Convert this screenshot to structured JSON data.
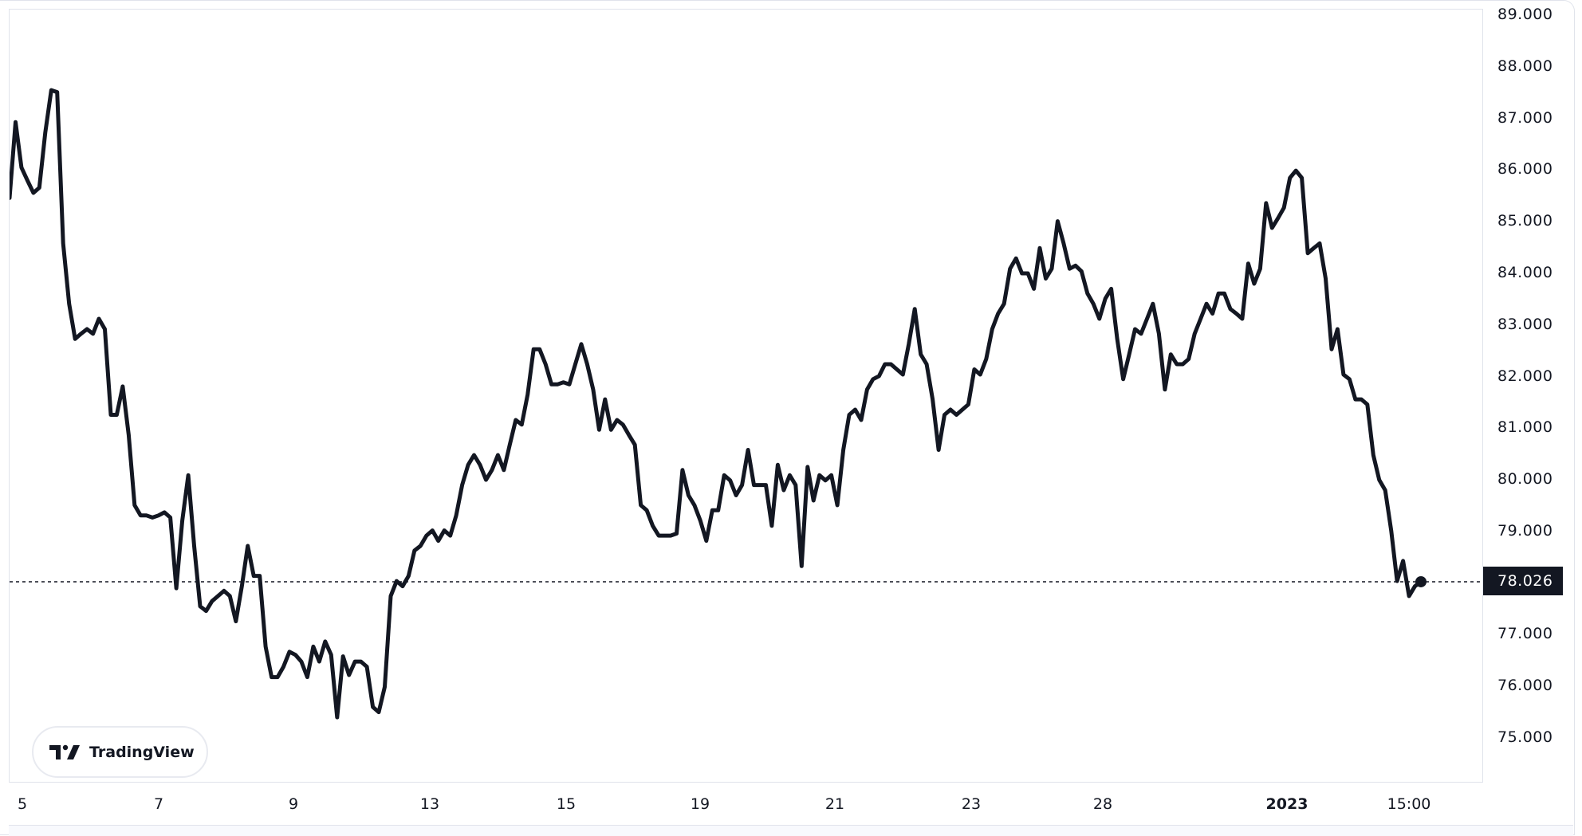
{
  "chart_data": {
    "type": "line",
    "title": "",
    "xlabel": "",
    "ylabel": "",
    "ylim": [
      74.12,
      89.11
    ],
    "grid": false,
    "line_color": "#131722",
    "y_ticks": [
      "89.000",
      "88.000",
      "87.000",
      "86.000",
      "85.000",
      "84.000",
      "83.000",
      "82.000",
      "81.000",
      "80.000",
      "79.000",
      "77.000",
      "76.000",
      "75.000"
    ],
    "y_tick_values": [
      89,
      88,
      87,
      86,
      85,
      84,
      83,
      82,
      81,
      80,
      79,
      77,
      76,
      75
    ],
    "x_ticks": [
      "5",
      "7",
      "9",
      "13",
      "15",
      "19",
      "21",
      "23",
      "28",
      "2023",
      "15:00"
    ],
    "last_price": 78.026,
    "last_price_label": "78.026",
    "values": [
      85.46,
      86.93,
      86.05,
      85.8,
      85.56,
      85.66,
      86.73,
      87.55,
      87.51,
      84.58,
      83.41,
      82.73,
      82.83,
      82.92,
      82.83,
      83.12,
      82.92,
      81.26,
      81.26,
      81.81,
      80.87,
      79.51,
      79.31,
      79.31,
      79.27,
      79.31,
      79.37,
      79.27,
      77.9,
      79.21,
      80.09,
      78.72,
      77.55,
      77.46,
      77.65,
      77.75,
      77.85,
      77.75,
      77.26,
      77.94,
      78.72,
      78.14,
      78.14,
      76.77,
      76.18,
      76.18,
      76.38,
      76.67,
      76.61,
      76.48,
      76.18,
      76.77,
      76.48,
      76.87,
      76.61,
      75.4,
      76.58,
      76.22,
      76.48,
      76.48,
      76.38,
      75.6,
      75.5,
      75.99,
      77.75,
      78.04,
      77.94,
      78.14,
      78.63,
      78.72,
      78.92,
      79.02,
      78.82,
      79.02,
      78.92,
      79.31,
      79.9,
      80.29,
      80.48,
      80.29,
      80.0,
      80.19,
      80.48,
      80.19,
      80.68,
      81.16,
      81.07,
      81.65,
      82.53,
      82.53,
      82.24,
      81.85,
      81.85,
      81.89,
      81.85,
      82.24,
      82.63,
      82.24,
      81.75,
      80.97,
      81.56,
      80.97,
      81.16,
      81.07,
      80.87,
      80.68,
      79.51,
      79.41,
      79.11,
      78.92,
      78.92,
      78.92,
      78.96,
      80.19,
      79.7,
      79.51,
      79.21,
      78.82,
      79.41,
      79.41,
      80.09,
      79.99,
      79.7,
      79.9,
      80.58,
      79.9,
      79.9,
      79.9,
      79.11,
      80.29,
      79.8,
      80.09,
      79.9,
      78.33,
      80.25,
      79.6,
      80.09,
      79.99,
      80.09,
      79.51,
      80.58,
      81.26,
      81.36,
      81.16,
      81.75,
      81.95,
      82.01,
      82.24,
      82.24,
      82.14,
      82.04,
      82.63,
      83.31,
      82.43,
      82.24,
      81.56,
      80.58,
      81.26,
      81.36,
      81.26,
      81.36,
      81.46,
      82.14,
      82.04,
      82.34,
      82.92,
      83.22,
      83.41,
      84.09,
      84.29,
      84.0,
      84.0,
      83.7,
      84.49,
      83.9,
      84.09,
      85.01,
      84.58,
      84.09,
      84.15,
      84.04,
      83.61,
      83.41,
      83.12,
      83.51,
      83.7,
      82.73,
      81.95,
      82.43,
      82.92,
      82.83,
      83.12,
      83.41,
      82.83,
      81.75,
      82.43,
      82.24,
      82.24,
      82.34,
      82.83,
      83.12,
      83.41,
      83.22,
      83.61,
      83.61,
      83.31,
      83.22,
      83.12,
      84.19,
      83.8,
      84.09,
      85.36,
      84.88,
      85.07,
      85.27,
      85.85,
      85.99,
      85.85,
      84.39,
      84.49,
      84.58,
      83.9,
      82.53,
      82.92,
      82.04,
      81.95,
      81.56,
      81.56,
      81.46,
      80.48,
      80.0,
      79.8,
      79.02,
      78.04,
      78.43,
      77.75,
      77.94,
      78.03
    ]
  },
  "logo": {
    "text": "TradingView"
  }
}
